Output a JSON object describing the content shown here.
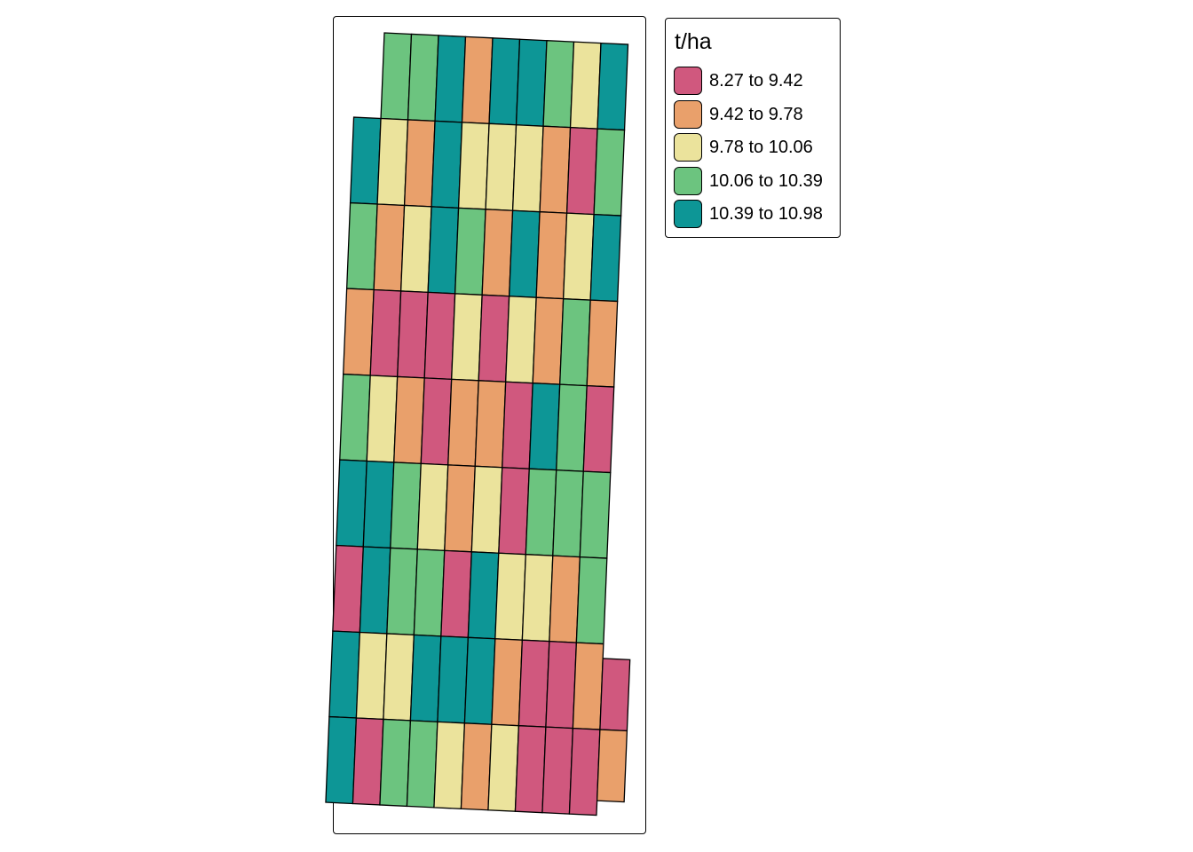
{
  "legend": {
    "title": "t/ha",
    "classes": [
      {
        "label": "8.27 to 9.42",
        "color": "#d0587e"
      },
      {
        "label": "9.42 to 9.78",
        "color": "#e9a06b"
      },
      {
        "label": "9.78 to 10.06",
        "color": "#ebe39c"
      },
      {
        "label": "10.06 to 10.39",
        "color": "#6cc47f"
      },
      {
        "label": "10.39 to 10.98",
        "color": "#0d9696"
      }
    ]
  },
  "chart_data": {
    "type": "heatmap",
    "description": "Choropleth of field plots coloured by yield class (t/ha). Rows listed top to bottom, columns left to right; values are legend class indices (0 = lowest class). null = no plot.",
    "grid": [
      [
        null,
        3,
        3,
        4,
        1,
        4,
        4,
        3,
        2,
        4
      ],
      [
        4,
        2,
        1,
        4,
        2,
        2,
        2,
        1,
        0,
        3
      ],
      [
        3,
        1,
        2,
        4,
        3,
        1,
        4,
        1,
        2,
        4
      ],
      [
        1,
        0,
        0,
        0,
        2,
        0,
        2,
        1,
        3,
        1
      ],
      [
        3,
        2,
        1,
        0,
        1,
        1,
        0,
        4,
        3,
        0
      ],
      [
        4,
        4,
        3,
        2,
        1,
        2,
        0,
        3,
        3,
        3
      ],
      [
        0,
        4,
        3,
        3,
        0,
        4,
        2,
        2,
        1,
        3
      ],
      [
        4,
        2,
        2,
        4,
        4,
        4,
        1,
        0,
        0,
        1
      ],
      [
        4,
        0,
        3,
        3,
        2,
        1,
        2,
        0,
        0,
        0
      ]
    ],
    "extra_plots": [
      0,
      1
    ]
  }
}
